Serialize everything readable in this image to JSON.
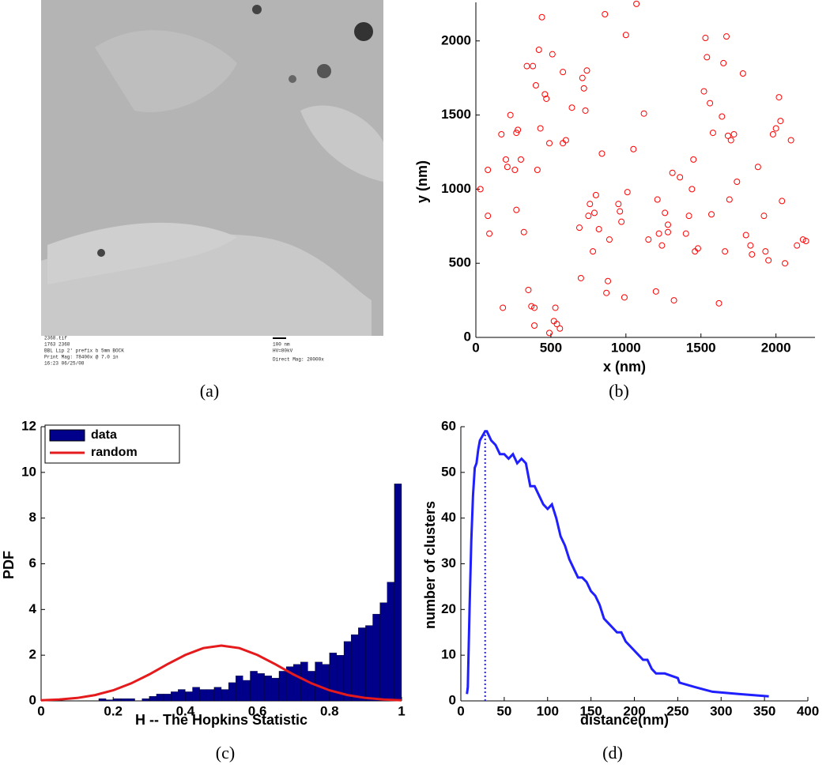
{
  "chart_data": [
    {
      "type": "image",
      "caption": "(a)",
      "texts": [
        "2368.tif",
        "1763 2368",
        "BBL Lip 2' prefix b 5mm BOCK",
        "Print Mag: 78400x @ 7.0 in",
        "16:23 06/25/08",
        "100 nm",
        "HV=80kV",
        "Direct Mag: 20000x"
      ]
    },
    {
      "type": "scatter",
      "caption": "(b)",
      "xlabel": "x (nm)",
      "ylabel": "y (nm)",
      "color": "#ff0000",
      "xlim": [
        0,
        2260
      ],
      "ylim": [
        0,
        2260
      ],
      "xticks": [
        0,
        500,
        1000,
        1500,
        2000
      ],
      "yticks": [
        0,
        500,
        1000,
        1500,
        2000
      ],
      "x": [
        30,
        80,
        80,
        90,
        170,
        180,
        200,
        210,
        230,
        260,
        270,
        270,
        280,
        300,
        320,
        340,
        350,
        370,
        380,
        390,
        390,
        400,
        410,
        420,
        430,
        440,
        460,
        470,
        490,
        490,
        510,
        520,
        530,
        540,
        560,
        580,
        580,
        600,
        640,
        690,
        700,
        710,
        720,
        730,
        740,
        750,
        760,
        780,
        790,
        800,
        820,
        840,
        860,
        870,
        880,
        890,
        950,
        960,
        970,
        990,
        1000,
        1010,
        1050,
        1070,
        1120,
        1150,
        1200,
        1210,
        1220,
        1240,
        1260,
        1280,
        1310,
        1320,
        1360,
        1420,
        1440,
        1450,
        1460,
        1480,
        1520,
        1530,
        1540,
        1560,
        1570,
        1580,
        1620,
        1640,
        1650,
        1660,
        1670,
        1680,
        1690,
        1700,
        1720,
        1740,
        1780,
        1800,
        1830,
        1840,
        1880,
        1920,
        1930,
        1950,
        1980,
        2000,
        2020,
        2030,
        2040,
        2060,
        2100,
        2140,
        2180,
        2200,
        1400,
        1280
      ],
      "y": [
        1000,
        1130,
        820,
        700,
        1370,
        200,
        1200,
        1150,
        1500,
        1130,
        860,
        1380,
        1400,
        1200,
        710,
        1830,
        320,
        210,
        1830,
        80,
        200,
        1700,
        1130,
        1940,
        1410,
        2160,
        1640,
        1610,
        1310,
        30,
        1910,
        110,
        200,
        90,
        60,
        1790,
        1310,
        1330,
        1550,
        740,
        400,
        1750,
        1680,
        1530,
        1800,
        820,
        900,
        580,
        840,
        960,
        730,
        1240,
        2180,
        300,
        380,
        660,
        900,
        850,
        780,
        270,
        2040,
        980,
        1270,
        2250,
        1510,
        660,
        310,
        930,
        700,
        620,
        840,
        760,
        1110,
        250,
        1080,
        820,
        1000,
        1200,
        580,
        600,
        1660,
        2020,
        1890,
        1580,
        830,
        1380,
        230,
        1490,
        1850,
        580,
        2030,
        1360,
        930,
        1330,
        1370,
        1050,
        1780,
        690,
        620,
        560,
        1150,
        820,
        580,
        520,
        1370,
        1410,
        1620,
        1460,
        920,
        500,
        1330,
        620,
        660,
        650,
        700,
        710
      ]
    },
    {
      "type": "histogram",
      "caption": "(c)",
      "xlabel": "H -- The Hopkins Statistic",
      "ylabel": "PDF",
      "xlim": [
        0,
        1
      ],
      "ylim": [
        0,
        12
      ],
      "xticks": [
        0,
        0.2,
        0.4,
        0.6,
        0.8,
        1
      ],
      "yticks": [
        0,
        2,
        4,
        6,
        8,
        10,
        12
      ],
      "legend": "upper left",
      "bins": [
        0,
        0.02,
        0.04,
        0.06,
        0.08,
        0.1,
        0.12,
        0.14,
        0.16,
        0.18,
        0.2,
        0.22,
        0.24,
        0.26,
        0.28,
        0.3,
        0.32,
        0.34,
        0.36,
        0.38,
        0.4,
        0.42,
        0.44,
        0.46,
        0.48,
        0.5,
        0.52,
        0.54,
        0.56,
        0.58,
        0.6,
        0.62,
        0.64,
        0.66,
        0.68,
        0.7,
        0.72,
        0.74,
        0.76,
        0.78,
        0.8,
        0.82,
        0.84,
        0.86,
        0.88,
        0.9,
        0.92,
        0.94,
        0.96,
        0.98,
        1
      ],
      "series": [
        {
          "name": "data",
          "color": "#00008b",
          "values": [
            0,
            0,
            0,
            0,
            0,
            0,
            0,
            0,
            0.1,
            0.05,
            0.1,
            0.1,
            0.1,
            0,
            0.1,
            0.2,
            0.3,
            0.3,
            0.4,
            0.5,
            0.4,
            0.6,
            0.5,
            0.5,
            0.6,
            0.5,
            0.8,
            1.1,
            0.9,
            1.3,
            1.2,
            1.1,
            1.0,
            1.3,
            1.5,
            1.6,
            1.7,
            1.3,
            1.7,
            1.6,
            2.1,
            2.0,
            2.6,
            2.9,
            3.2,
            3.3,
            3.8,
            4.3,
            5.2,
            9.5
          ]
        },
        {
          "name": "random",
          "color": "#e41a1c",
          "x": [
            0,
            0.05,
            0.1,
            0.15,
            0.2,
            0.25,
            0.3,
            0.35,
            0.4,
            0.45,
            0.5,
            0.55,
            0.6,
            0.65,
            0.7,
            0.75,
            0.8,
            0.85,
            0.9,
            0.95,
            1
          ],
          "values": [
            0.024,
            0.059,
            0.128,
            0.255,
            0.463,
            0.767,
            1.16,
            1.6,
            2.01,
            2.31,
            2.42,
            2.31,
            2.01,
            1.6,
            1.16,
            0.767,
            0.463,
            0.255,
            0.128,
            0.059,
            0.024
          ]
        }
      ]
    },
    {
      "type": "line",
      "caption": "(d)",
      "xlabel": "distance(nm)",
      "ylabel": "number of clusters",
      "color": "#1f1fff",
      "xlim": [
        0,
        400
      ],
      "ylim": [
        0,
        60
      ],
      "xticks": [
        0,
        50,
        100,
        150,
        200,
        250,
        300,
        350,
        400
      ],
      "yticks": [
        0,
        10,
        20,
        30,
        40,
        50,
        60
      ],
      "vline_x": 28,
      "x": [
        7,
        8,
        10,
        12,
        14,
        16,
        18,
        20,
        22,
        25,
        28,
        30,
        35,
        40,
        45,
        50,
        55,
        60,
        65,
        70,
        75,
        80,
        85,
        90,
        95,
        100,
        105,
        110,
        115,
        120,
        125,
        130,
        135,
        140,
        145,
        150,
        155,
        160,
        165,
        170,
        175,
        180,
        185,
        190,
        200,
        205,
        210,
        215,
        220,
        225,
        235,
        250,
        252,
        270,
        290,
        320,
        355
      ],
      "values": [
        1.5,
        3,
        20,
        35,
        45,
        51,
        52,
        55,
        57,
        58,
        59,
        59,
        57,
        56,
        54,
        54,
        53,
        54,
        52,
        53,
        52,
        47,
        47,
        45,
        43,
        42,
        43,
        40,
        36,
        34,
        31,
        29,
        27,
        27,
        26,
        24,
        23,
        21,
        18,
        17,
        16,
        15,
        15,
        13,
        11,
        10,
        9,
        9,
        7,
        6,
        6,
        5,
        4,
        3,
        2,
        1.5,
        1
      ]
    }
  ]
}
